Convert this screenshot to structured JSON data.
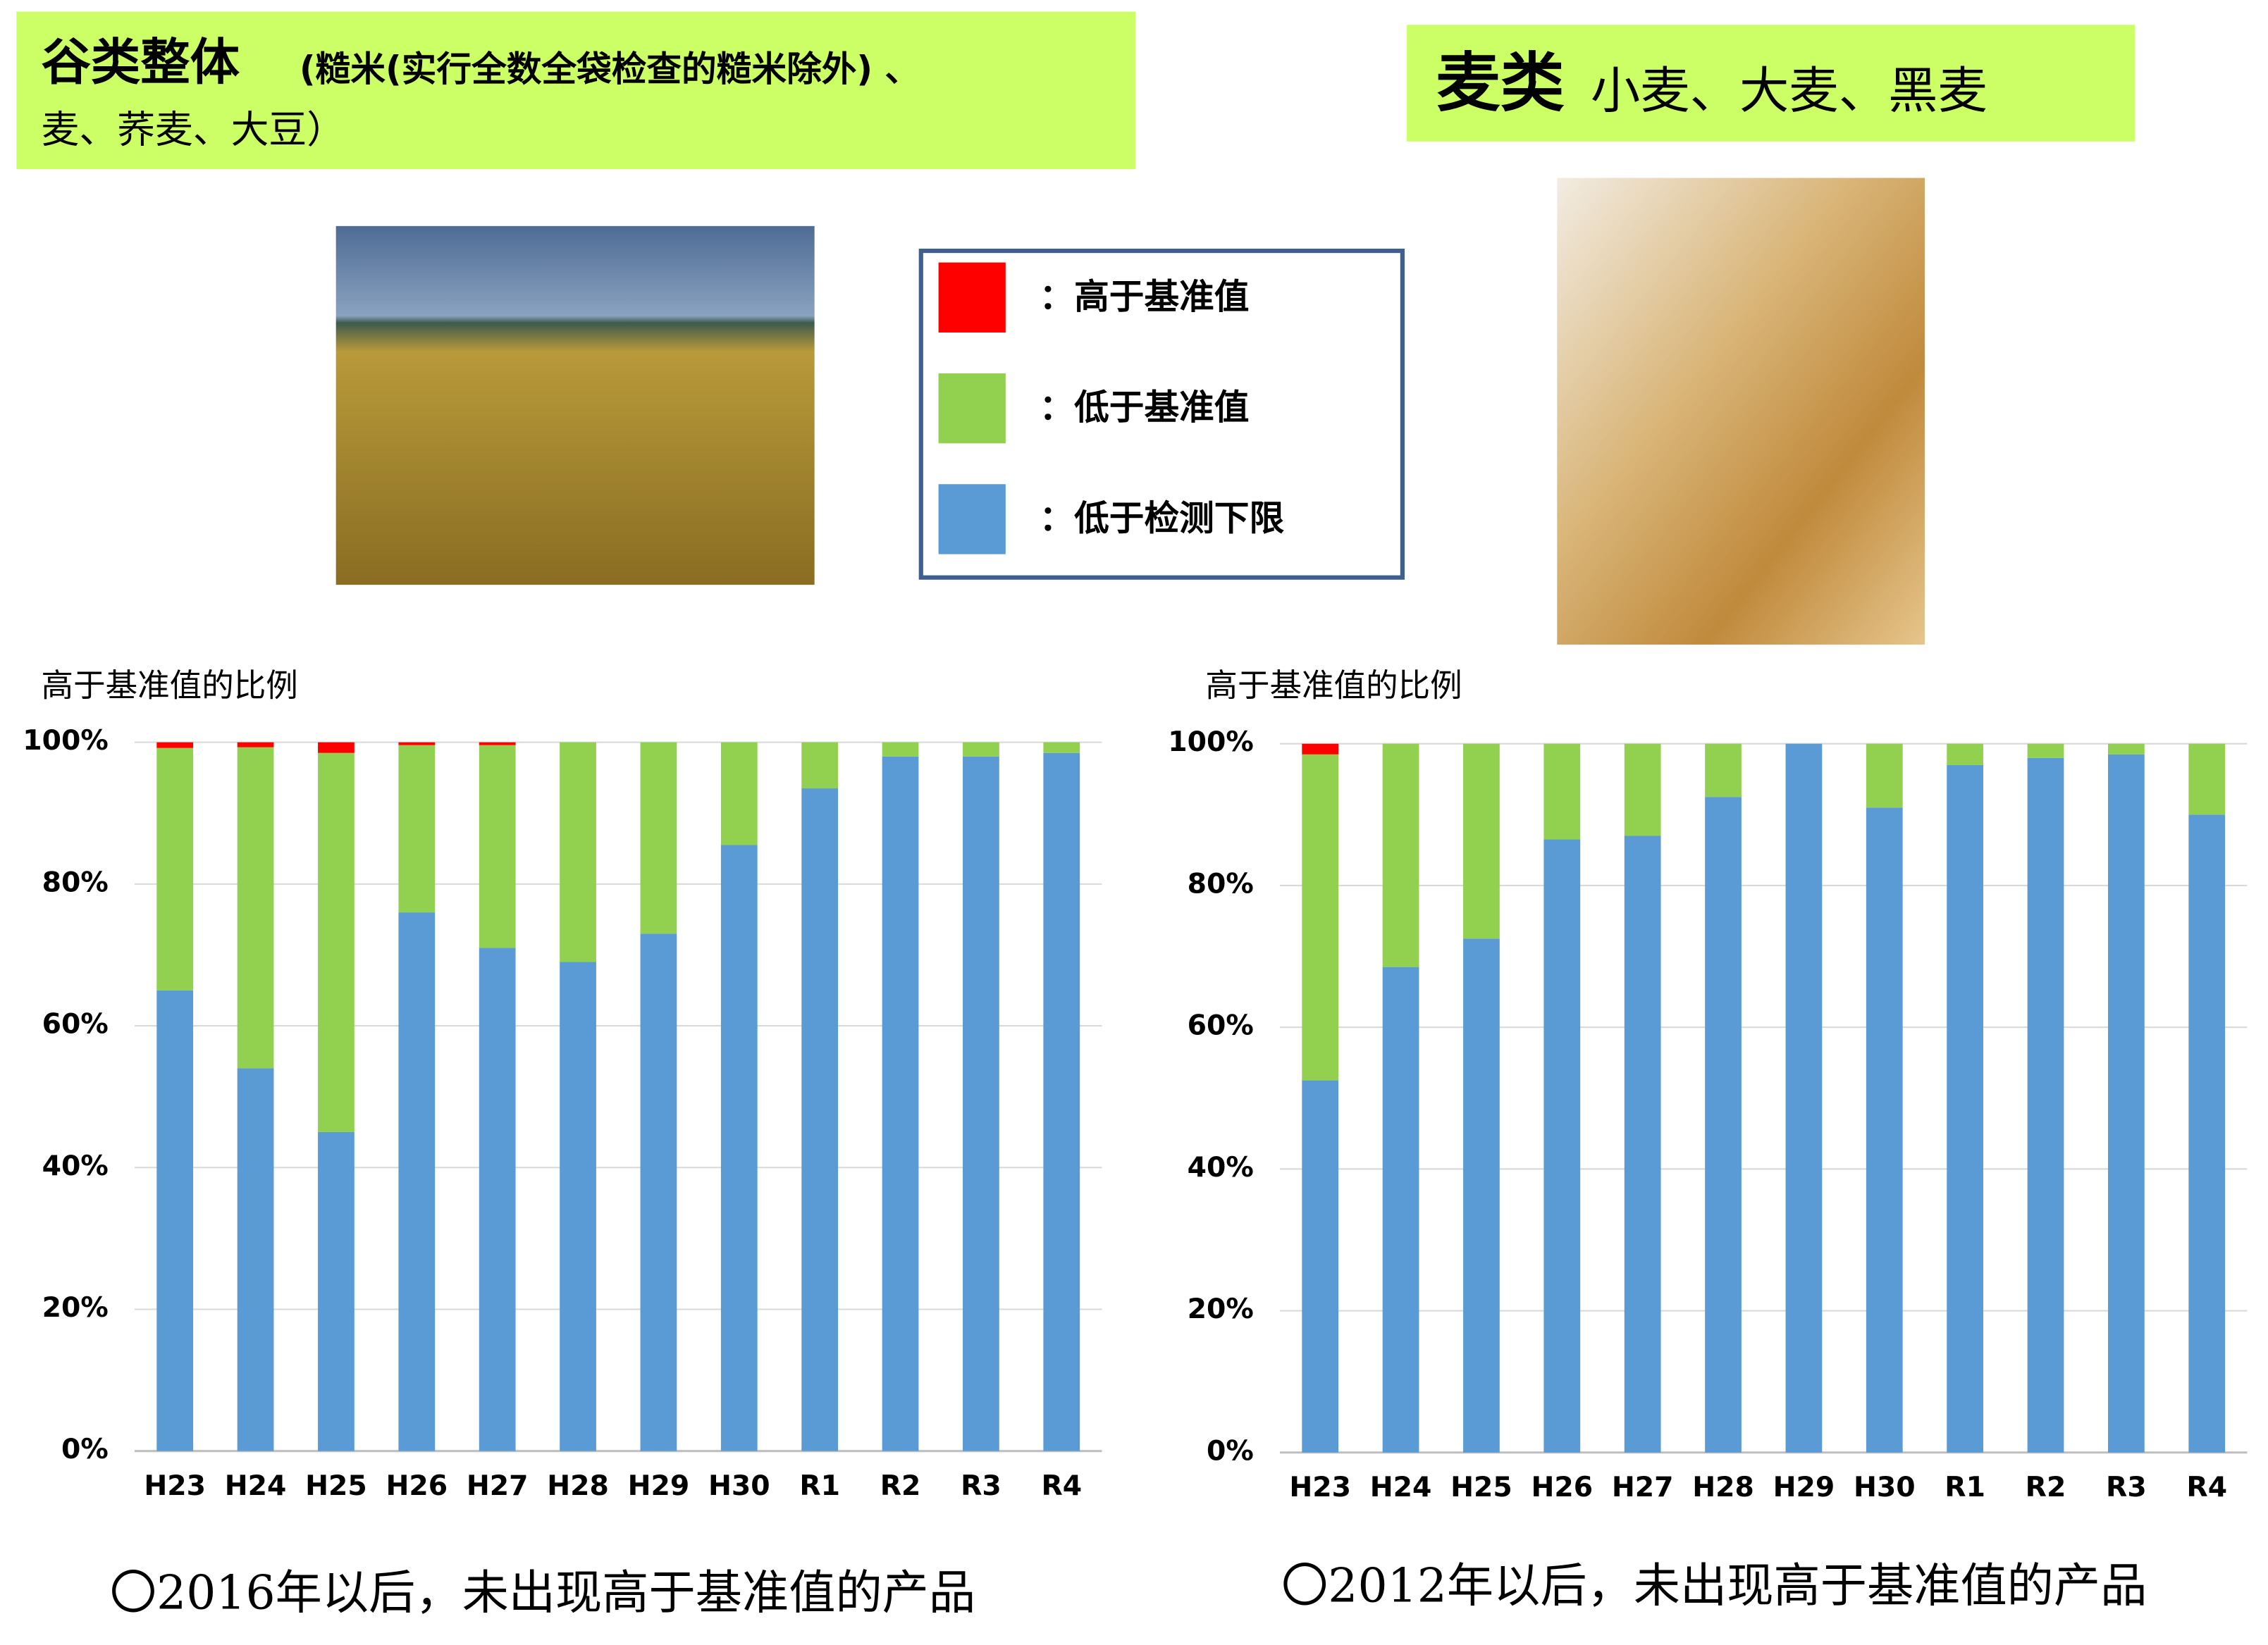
{
  "chart_data": [
    {
      "type": "stacked_bar",
      "title": "谷类整体",
      "subtitle_lines": [
        "(糙米(实行全数全袋检查的糙米除外) 、",
        "麦、荞麦、大豆）"
      ],
      "y_label": "高于基准值的比例",
      "categories": [
        "H23",
        "H24",
        "H25",
        "H26",
        "H27",
        "H28",
        "H29",
        "H30",
        "R1",
        "R2",
        "R3",
        "R4"
      ],
      "series": [
        {
          "name": "：低于检测下限",
          "color": "#5b9bd5",
          "values": [
            65,
            54,
            45,
            76,
            71,
            69,
            73,
            85.5,
            93.5,
            98,
            98,
            98.5
          ]
        },
        {
          "name": "：低于基准值",
          "color": "#92d050",
          "values": [
            34.2,
            45.3,
            53.5,
            23.6,
            28.6,
            31,
            27,
            14.5,
            6.5,
            2,
            2,
            1.5
          ]
        },
        {
          "name": "：高于基准值",
          "color": "#ff0000",
          "values": [
            0.8,
            0.7,
            1.5,
            0.4,
            0.4,
            0,
            0,
            0,
            0,
            0,
            0,
            0
          ]
        }
      ],
      "ylim": [
        0,
        100
      ],
      "yticks": [
        {
          "value": 0,
          "label": "0%"
        },
        {
          "value": 20,
          "label": "20%"
        },
        {
          "value": 40,
          "label": "40%"
        },
        {
          "value": 60,
          "label": "60%"
        },
        {
          "value": 80,
          "label": "80%"
        },
        {
          "value": 100,
          "label": "100%"
        }
      ],
      "grid": true,
      "note": "〇2016年以后，未出现高于基准值的产品"
    },
    {
      "type": "stacked_bar",
      "title": "麦类",
      "subtitle_lines": [
        "小麦、大麦、黑麦"
      ],
      "y_label": "高于基准值的比例",
      "categories": [
        "H23",
        "H24",
        "H25",
        "H26",
        "H27",
        "H28",
        "H29",
        "H30",
        "R1",
        "R2",
        "R3",
        "R4"
      ],
      "series": [
        {
          "name": "：低于检测下限",
          "color": "#5b9bd5",
          "values": [
            52.5,
            68.5,
            72.5,
            86.5,
            87,
            92.5,
            100,
            91,
            97,
            98,
            98.5,
            90
          ]
        },
        {
          "name": "：低于基准值",
          "color": "#92d050",
          "values": [
            46,
            31.5,
            27.5,
            13.5,
            13,
            7.5,
            0,
            9,
            3,
            2,
            1.5,
            10
          ]
        },
        {
          "name": "：高于基准值",
          "color": "#ff0000",
          "values": [
            1.5,
            0,
            0,
            0,
            0,
            0,
            0,
            0,
            0,
            0,
            0,
            0
          ]
        }
      ],
      "ylim": [
        0,
        100
      ],
      "yticks": [
        {
          "value": 0,
          "label": "0%"
        },
        {
          "value": 20,
          "label": "20%"
        },
        {
          "value": 40,
          "label": "40%"
        },
        {
          "value": 60,
          "label": "60%"
        },
        {
          "value": 80,
          "label": "80%"
        },
        {
          "value": 100,
          "label": "100%"
        }
      ],
      "grid": true,
      "note": "〇2012年以后，未出现高于基准值的产品"
    }
  ]
}
